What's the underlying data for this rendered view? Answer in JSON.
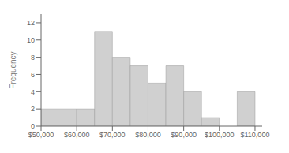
{
  "chart_data": {
    "type": "histogram",
    "bins": [
      50000,
      60000,
      65000,
      70000,
      75000,
      80000,
      85000,
      90000,
      95000,
      100000,
      105000,
      110000
    ],
    "values": [
      2,
      2,
      11,
      8,
      7,
      5,
      7,
      4,
      1,
      0,
      4
    ],
    "color": "#d0d0d0",
    "ylabel": "Frequency",
    "xlim": [
      50000,
      112000
    ],
    "ylim": [
      0,
      13
    ],
    "yticks": [
      0,
      2,
      4,
      6,
      8,
      10,
      12
    ],
    "xticks": [
      {
        "value": 50000,
        "label": "$50,000"
      },
      {
        "value": 60000,
        "label": "$60,000"
      },
      {
        "value": 70000,
        "label": "$70,000"
      },
      {
        "value": 80000,
        "label": "$80,000"
      },
      {
        "value": 90000,
        "label": "$90,000"
      },
      {
        "value": 100000,
        "label": "$100,000"
      },
      {
        "value": 110000,
        "label": "$110,000"
      }
    ]
  }
}
